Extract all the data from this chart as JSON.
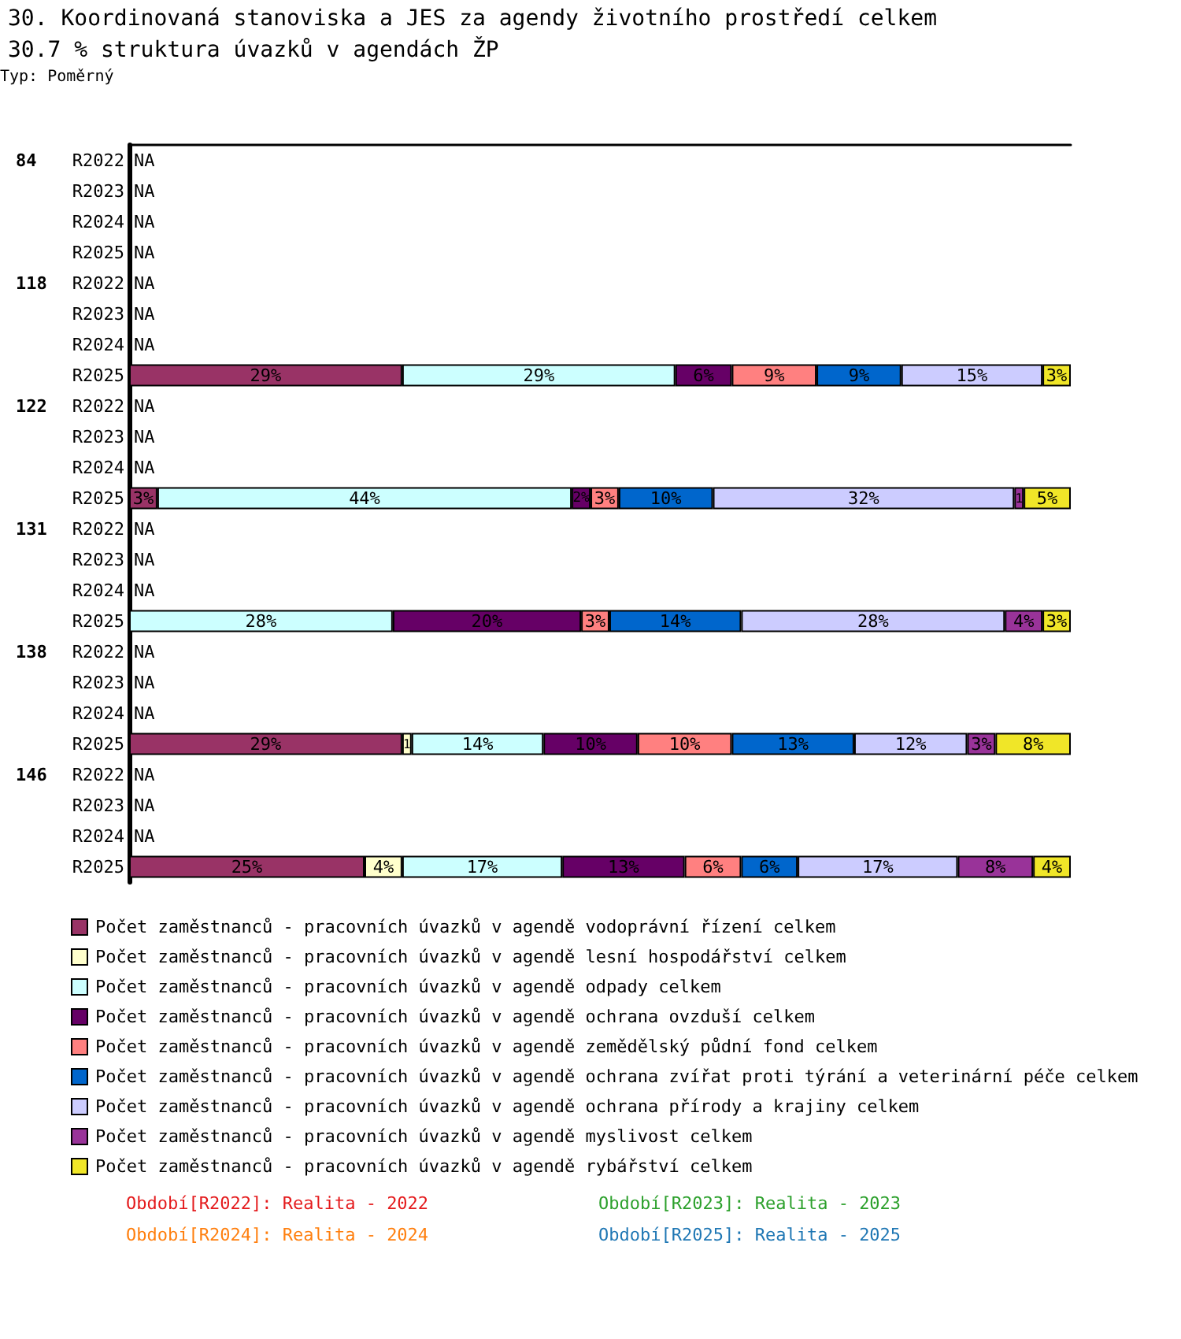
{
  "chart_data": {
    "type": "bar",
    "orientation": "horizontal",
    "stacked": true,
    "title": "30. Koordinovaná stanoviska a JES za agendy životního prostředí celkem",
    "subtitle": "30.7 % struktura úvazků v agendách ŽP",
    "annotations": [
      "Typ: Poměrný",
      "84",
      "118",
      "122",
      "131",
      "138",
      "146",
      "Období[R2022]: Realita - 2022",
      "Období[R2023]: Realita - 2023",
      "Období[R2024]: Realita - 2024",
      "Období[R2025]: Realita - 2025"
    ],
    "categories": [
      "R2022",
      "R2023",
      "R2024",
      "R2025",
      "R2022",
      "R2023",
      "R2024",
      "R2025",
      "R2022",
      "R2023",
      "R2024",
      "R2025",
      "R2022",
      "R2023",
      "R2024",
      "R2025",
      "R2022",
      "R2023",
      "R2024",
      "R2025",
      "R2022",
      "R2023",
      "R2024",
      "R2025"
    ],
    "xlim": [
      0,
      100
    ],
    "tick_labels": "y",
    "grid": false,
    "legend": "bottom",
    "series": [
      {
        "name": "Počet zaměstnanců - pracovních úvazků v agendě vodoprávní řízení celkem",
        "color": "#993366",
        "values": [
          null,
          null,
          null,
          null,
          null,
          null,
          null,
          29,
          null,
          null,
          null,
          3,
          null,
          null,
          null,
          null,
          null,
          null,
          null,
          29,
          null,
          null,
          null,
          25
        ],
        "value_labels": [
          "NA",
          "NA",
          "NA",
          "NA",
          "NA",
          "NA",
          "NA",
          "29%",
          "NA",
          "NA",
          "NA",
          "3%",
          "NA",
          "NA",
          "NA",
          null,
          "NA",
          "NA",
          "NA",
          "29%",
          "NA",
          "NA",
          "NA",
          "25%"
        ]
      },
      {
        "name": "Počet zaměstnanců - pracovních úvazků v agendě lesní hospodářství celkem",
        "color": "#ffffcc",
        "values": [
          null,
          null,
          null,
          null,
          null,
          null,
          null,
          null,
          null,
          null,
          null,
          null,
          null,
          null,
          null,
          null,
          null,
          null,
          null,
          1,
          null,
          null,
          null,
          4
        ],
        "value_labels": [
          null,
          null,
          null,
          null,
          null,
          null,
          null,
          null,
          null,
          null,
          null,
          null,
          null,
          null,
          null,
          null,
          null,
          null,
          null,
          "1",
          null,
          null,
          null,
          "4%"
        ]
      },
      {
        "name": "Počet zaměstnanců - pracovních úvazků v agendě odpady celkem",
        "color": "#ccffff",
        "values": [
          null,
          null,
          null,
          null,
          null,
          null,
          null,
          29,
          null,
          null,
          null,
          44,
          null,
          null,
          null,
          28,
          null,
          null,
          null,
          14,
          null,
          null,
          null,
          17
        ],
        "value_labels": [
          null,
          null,
          null,
          null,
          null,
          null,
          null,
          "29%",
          null,
          null,
          null,
          "44%",
          null,
          null,
          null,
          "28%",
          null,
          null,
          null,
          "14%",
          null,
          null,
          null,
          "17%"
        ]
      },
      {
        "name": "Počet zaměstnanců - pracovních úvazků v agendě ochrana ovzduší celkem",
        "color": "#660066",
        "values": [
          null,
          null,
          null,
          null,
          null,
          null,
          null,
          6,
          null,
          null,
          null,
          2,
          null,
          null,
          null,
          20,
          null,
          null,
          null,
          10,
          null,
          null,
          null,
          13
        ],
        "value_labels": [
          null,
          null,
          null,
          null,
          null,
          null,
          null,
          "6%",
          null,
          null,
          null,
          "2%",
          null,
          null,
          null,
          "20%",
          null,
          null,
          null,
          "10%",
          null,
          null,
          null,
          "13%"
        ]
      },
      {
        "name": "Počet zaměstnanců - pracovních úvazků v agendě zemědělský půdní fond celkem",
        "color": "#ff8080",
        "values": [
          null,
          null,
          null,
          null,
          null,
          null,
          null,
          9,
          null,
          null,
          null,
          3,
          null,
          null,
          null,
          3,
          null,
          null,
          null,
          10,
          null,
          null,
          null,
          6
        ],
        "value_labels": [
          null,
          null,
          null,
          null,
          null,
          null,
          null,
          "9%",
          null,
          null,
          null,
          "3%",
          null,
          null,
          null,
          "3%",
          null,
          null,
          null,
          "10%",
          null,
          null,
          null,
          "6%"
        ]
      },
      {
        "name": "Počet zaměstnanců - pracovních úvazků v agendě ochrana zvířat proti týrání a veterinární péče celkem",
        "color": "#0066cc",
        "values": [
          null,
          null,
          null,
          null,
          null,
          null,
          null,
          9,
          null,
          null,
          null,
          10,
          null,
          null,
          null,
          14,
          null,
          null,
          null,
          13,
          null,
          null,
          null,
          6
        ],
        "value_labels": [
          null,
          null,
          null,
          null,
          null,
          null,
          null,
          "9%",
          null,
          null,
          null,
          "10%",
          null,
          null,
          null,
          "14%",
          null,
          null,
          null,
          "13%",
          null,
          null,
          null,
          "6%"
        ]
      },
      {
        "name": "Počet zaměstnanců - pracovních úvazků v agendě ochrana přírody a krajiny celkem",
        "color": "#ccccff",
        "values": [
          null,
          null,
          null,
          null,
          null,
          null,
          null,
          15,
          null,
          null,
          null,
          32,
          null,
          null,
          null,
          28,
          null,
          null,
          null,
          12,
          null,
          null,
          null,
          17
        ],
        "value_labels": [
          null,
          null,
          null,
          null,
          null,
          null,
          null,
          "15%",
          null,
          null,
          null,
          "32%",
          null,
          null,
          null,
          "28%",
          null,
          null,
          null,
          "12%",
          null,
          null,
          null,
          "17%"
        ]
      },
      {
        "name": "Počet zaměstnanců - pracovních úvazků v agendě myslivost celkem",
        "color": "#993399",
        "values": [
          null,
          null,
          null,
          null,
          null,
          null,
          null,
          null,
          null,
          null,
          null,
          1,
          null,
          null,
          null,
          4,
          null,
          null,
          null,
          3,
          null,
          null,
          null,
          8
        ],
        "value_labels": [
          null,
          null,
          null,
          null,
          null,
          null,
          null,
          null,
          null,
          null,
          null,
          "1",
          null,
          null,
          null,
          "4%",
          null,
          null,
          null,
          "3%",
          null,
          null,
          null,
          "8%"
        ]
      },
      {
        "name": "Počet zaměstnanců - pracovních úvazků v agendě rybářství celkem",
        "color": "#f0e628",
        "values": [
          null,
          null,
          null,
          null,
          null,
          null,
          null,
          3,
          null,
          null,
          null,
          5,
          null,
          null,
          null,
          3,
          null,
          null,
          null,
          8,
          null,
          null,
          null,
          4
        ],
        "value_labels": [
          null,
          null,
          null,
          null,
          null,
          null,
          null,
          "3%",
          null,
          null,
          null,
          "5%",
          null,
          null,
          null,
          "3%",
          null,
          null,
          null,
          "8%",
          null,
          null,
          null,
          "4%"
        ]
      }
    ]
  }
}
